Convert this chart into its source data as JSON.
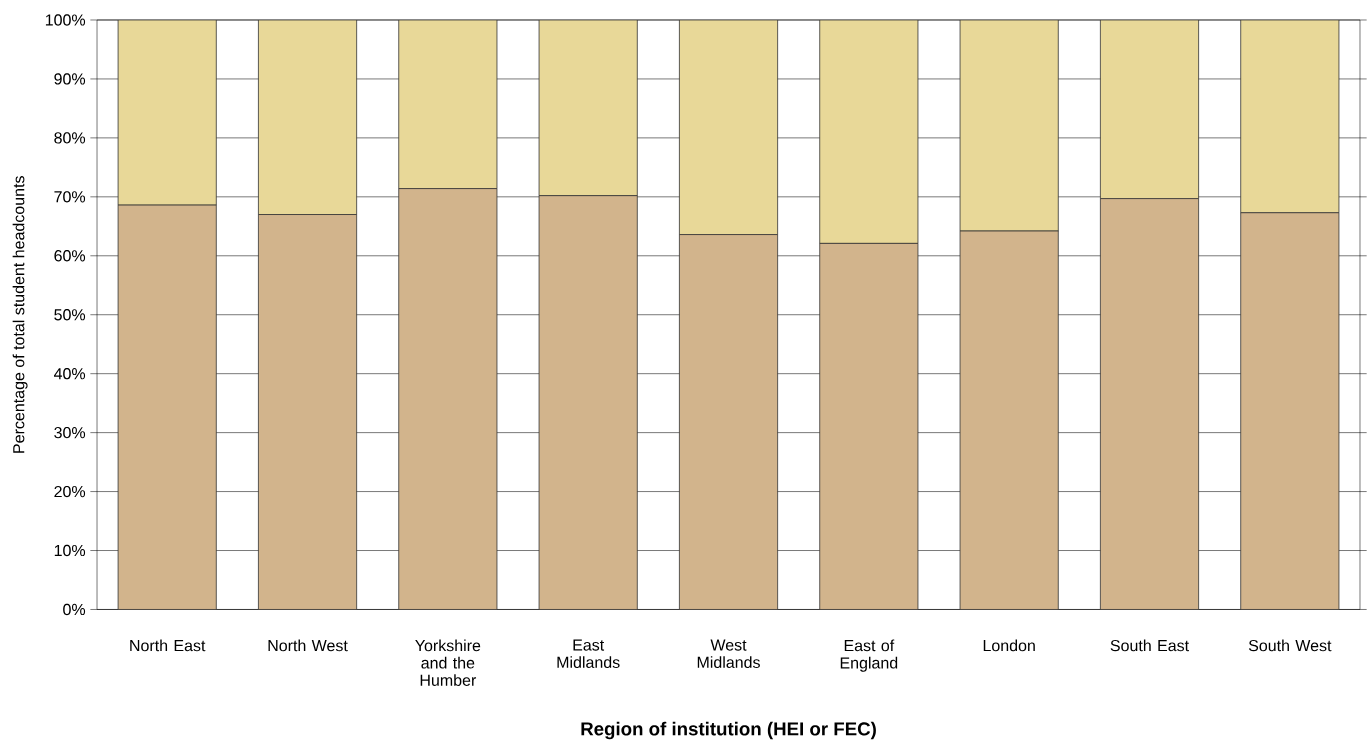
{
  "chart_data": {
    "type": "bar",
    "stacked": true,
    "xlabel": "Region of institution (HEI or FEC)",
    "ylabel": "Percentage of total student headcounts",
    "categories": [
      "North East",
      "North West",
      "Yorkshire and the Humber",
      "East Midlands",
      "West Midlands",
      "East of England",
      "London",
      "South East",
      "South West"
    ],
    "series": [
      {
        "color": "#d2b48c",
        "values": [
          68.6,
          67.0,
          71.4,
          70.2,
          63.6,
          62.1,
          64.2,
          69.7,
          67.3
        ]
      },
      {
        "color": "#e8d898",
        "values": [
          31.4,
          33.0,
          28.6,
          29.8,
          36.4,
          37.9,
          35.8,
          30.3,
          32.7
        ]
      }
    ],
    "ylim": [
      0,
      100
    ],
    "yticks": [
      {
        "value": 0,
        "label": "0%"
      },
      {
        "value": 10,
        "label": "10%"
      },
      {
        "value": 20,
        "label": "20%"
      },
      {
        "value": 30,
        "label": "30%"
      },
      {
        "value": 40,
        "label": "40%"
      },
      {
        "value": 50,
        "label": "50%"
      },
      {
        "value": 60,
        "label": "60%"
      },
      {
        "value": 70,
        "label": "70%"
      },
      {
        "value": 80,
        "label": "80%"
      },
      {
        "value": 90,
        "label": "90%"
      },
      {
        "value": 100,
        "label": "100%"
      }
    ],
    "grid": "y"
  }
}
